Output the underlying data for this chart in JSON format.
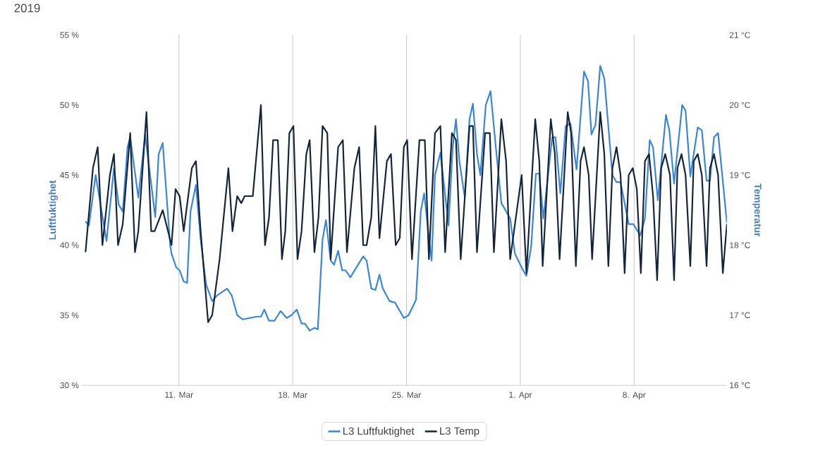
{
  "chart_data": {
    "type": "line",
    "title": "2019",
    "ylabel": "Luftfuktighet",
    "y2label": "Temperatur",
    "xlim": [
      "2019-03-05T00:00",
      "2019-04-13T17:00"
    ],
    "xticks": [
      {
        "value": "2019-03-11",
        "label": "11. Mar"
      },
      {
        "value": "2019-03-18",
        "label": "18. Mar"
      },
      {
        "value": "2019-03-25",
        "label": "25. Mar"
      },
      {
        "value": "2019-04-01",
        "label": "1. Apr"
      },
      {
        "value": "2019-04-08",
        "label": "8. Apr"
      }
    ],
    "ylim": [
      30,
      55
    ],
    "yticks": [
      {
        "value": 30,
        "label": "30 %"
      },
      {
        "value": 35,
        "label": "35 %"
      },
      {
        "value": 40,
        "label": "40 %"
      },
      {
        "value": 45,
        "label": "45 %"
      },
      {
        "value": 50,
        "label": "50 %"
      },
      {
        "value": 55,
        "label": "55 %"
      }
    ],
    "y2lim": [
      16,
      21
    ],
    "y2ticks": [
      {
        "value": 16,
        "label": "16 °C"
      },
      {
        "value": 17,
        "label": "17 °C"
      },
      {
        "value": 18,
        "label": "18 °C"
      },
      {
        "value": 19,
        "label": "19 °C"
      },
      {
        "value": 20,
        "label": "20 °C"
      },
      {
        "value": 21,
        "label": "21 °C"
      }
    ],
    "grid": "x",
    "legend": "bottom",
    "series": [
      {
        "name": "L3 Luftfuktighet",
        "color": "#3a86d6",
        "x": [
          "2019-03-05T06:00",
          "2019-03-05T11:00",
          "2019-03-05T21:00",
          "2019-03-06T13:00",
          "2019-03-07T00:00",
          "2019-03-07T07:00",
          "2019-03-07T13:00",
          "2019-03-07T20:00",
          "2019-03-08T00:00",
          "2019-03-08T12:00",
          "2019-03-08T22:00",
          "2019-03-09T13:00",
          "2019-03-09T18:00",
          "2019-03-10T00:00",
          "2019-03-10T11:00",
          "2019-03-10T13:00",
          "2019-03-10T20:00",
          "2019-03-11T01:00",
          "2019-03-11T07:00",
          "2019-03-11T12:00",
          "2019-03-11T17:00",
          "2019-03-12T01:00",
          "2019-03-12T08:00",
          "2019-03-12T16:00",
          "2019-03-13T01:00",
          "2019-03-13T08:00",
          "2019-03-13T23:00",
          "2019-03-14T06:00",
          "2019-03-14T14:00",
          "2019-03-14T22:00",
          "2019-03-15T08:00",
          "2019-03-15T19:00",
          "2019-03-16T01:00",
          "2019-03-16T06:00",
          "2019-03-16T13:00",
          "2019-03-16T21:00",
          "2019-03-17T06:00",
          "2019-03-17T15:00",
          "2019-03-17T22:00",
          "2019-03-18T06:00",
          "2019-03-18T13:00",
          "2019-03-18T18:00",
          "2019-03-19T01:00",
          "2019-03-19T08:00",
          "2019-03-19T13:00",
          "2019-03-19T20:00",
          "2019-03-20T01:00",
          "2019-03-20T08:00",
          "2019-03-20T13:00",
          "2019-03-20T19:00",
          "2019-03-21T01:00",
          "2019-03-21T06:00",
          "2019-03-21T13:00",
          "2019-03-22T08:00",
          "2019-03-22T13:00",
          "2019-03-22T20:00",
          "2019-03-23T02:00",
          "2019-03-23T08:00",
          "2019-03-23T13:00",
          "2019-03-23T23:00",
          "2019-03-24T07:00",
          "2019-03-24T20:00",
          "2019-03-25T03:00",
          "2019-03-25T14:00",
          "2019-03-25T21:00",
          "2019-03-26T02:00",
          "2019-03-26T08:00",
          "2019-03-26T13:00",
          "2019-03-26T18:00",
          "2019-03-27T02:00",
          "2019-03-27T14:00",
          "2019-03-27T20:00",
          "2019-03-28T01:00",
          "2019-03-28T06:00",
          "2019-03-28T14:00",
          "2019-03-28T21:00",
          "2019-03-29T02:00",
          "2019-03-29T08:00",
          "2019-03-29T13:00",
          "2019-03-29T21:00",
          "2019-03-30T04:00",
          "2019-03-30T12:00",
          "2019-03-30T20:00",
          "2019-03-31T09:00",
          "2019-03-31T16:00",
          "2019-04-01T03:00",
          "2019-04-01T09:00",
          "2019-04-01T16:00",
          "2019-04-01T23:00",
          "2019-04-02T04:00",
          "2019-04-02T10:00",
          "2019-04-02T23:00",
          "2019-04-03T04:00",
          "2019-04-03T11:00",
          "2019-04-03T19:00",
          "2019-04-04T02:00",
          "2019-04-04T11:00",
          "2019-04-04T22:00",
          "2019-04-05T04:00",
          "2019-04-05T09:00",
          "2019-04-05T15:00",
          "2019-04-05T22:00",
          "2019-04-06T04:00",
          "2019-04-06T16:00",
          "2019-04-06T22:00",
          "2019-04-07T04:00",
          "2019-04-07T16:00",
          "2019-04-07T23:00",
          "2019-04-08T09:00",
          "2019-04-08T16:00",
          "2019-04-08T23:00",
          "2019-04-09T04:00",
          "2019-04-09T11:00",
          "2019-04-09T23:00",
          "2019-04-10T04:00",
          "2019-04-10T11:00",
          "2019-04-10T23:00",
          "2019-04-11T04:00",
          "2019-04-11T11:00",
          "2019-04-11T22:00",
          "2019-04-12T04:00",
          "2019-04-12T11:00",
          "2019-04-12T16:00",
          "2019-04-12T22:00",
          "2019-04-13T04:00",
          "2019-04-13T17:00"
        ],
        "values": [
          41.7,
          41.4,
          45.0,
          40.3,
          45.5,
          42.9,
          42.4,
          47.0,
          47.7,
          43.4,
          47.9,
          42.0,
          46.5,
          47.3,
          40.0,
          39.4,
          38.4,
          38.2,
          37.4,
          37.3,
          42.4,
          44.3,
          40.4,
          37.2,
          36.0,
          36.4,
          36.9,
          36.4,
          35.0,
          34.7,
          34.8,
          34.9,
          34.9,
          35.4,
          34.6,
          34.6,
          35.3,
          34.8,
          35.0,
          35.4,
          34.4,
          34.4,
          33.9,
          34.1,
          34.0,
          40.4,
          41.8,
          38.9,
          38.6,
          39.6,
          38.2,
          38.2,
          37.7,
          39.2,
          38.9,
          36.9,
          36.8,
          37.9,
          36.9,
          36.0,
          35.9,
          34.8,
          35.0,
          36.1,
          42.4,
          43.7,
          41.0,
          38.9,
          45.0,
          46.6,
          41.4,
          46.9,
          49.0,
          46.0,
          43.4,
          49.0,
          50.1,
          46.5,
          45.0,
          50.0,
          51.0,
          46.9,
          43.0,
          41.9,
          39.4,
          38.3,
          37.8,
          39.9,
          45.1,
          45.1,
          41.9,
          47.7,
          47.7,
          43.7,
          48.5,
          48.7,
          45.4,
          52.4,
          51.7,
          47.9,
          48.6,
          52.8,
          51.9,
          45.0,
          44.5,
          44.5,
          41.5,
          41.5,
          40.7,
          41.9,
          47.5,
          47.0,
          43.2,
          49.3,
          48.2,
          44.4,
          50.0,
          49.6,
          44.9,
          48.4,
          48.2,
          44.6,
          44.6,
          47.7,
          48.0,
          41.6
        ]
      },
      {
        "name": "L3 Temp",
        "color": "#14243a",
        "axis": "y2",
        "x": [
          "2019-03-05T06:00",
          "2019-03-05T17:00",
          "2019-03-06T00:00",
          "2019-03-06T07:00",
          "2019-03-06T18:00",
          "2019-03-07T00:00",
          "2019-03-07T06:00",
          "2019-03-07T13:00",
          "2019-03-08T00:00",
          "2019-03-08T07:00",
          "2019-03-08T12:00",
          "2019-03-09T00:00",
          "2019-03-09T07:00",
          "2019-03-09T12:00",
          "2019-03-10T00:00",
          "2019-03-10T13:00",
          "2019-03-10T19:00",
          "2019-03-11T01:00",
          "2019-03-11T07:00",
          "2019-03-11T19:00",
          "2019-03-12T01:00",
          "2019-03-12T08:00",
          "2019-03-12T19:00",
          "2019-03-13T01:00",
          "2019-03-13T12:00",
          "2019-03-14T01:00",
          "2019-03-14T07:00",
          "2019-03-14T14:00",
          "2019-03-14T20:00",
          "2019-03-15T01:00",
          "2019-03-15T13:00",
          "2019-03-16T01:00",
          "2019-03-16T07:00",
          "2019-03-16T13:00",
          "2019-03-16T19:00",
          "2019-03-17T02:00",
          "2019-03-17T08:00",
          "2019-03-17T13:00",
          "2019-03-17T19:00",
          "2019-03-18T01:00",
          "2019-03-18T07:00",
          "2019-03-18T13:00",
          "2019-03-18T20:00",
          "2019-03-19T01:00",
          "2019-03-19T08:00",
          "2019-03-19T14:00",
          "2019-03-19T20:00",
          "2019-03-20T03:00",
          "2019-03-20T08:00",
          "2019-03-20T19:00",
          "2019-03-21T02:00",
          "2019-03-21T08:00",
          "2019-03-21T19:00",
          "2019-03-22T02:00",
          "2019-03-22T08:00",
          "2019-03-22T13:00",
          "2019-03-22T20:00",
          "2019-03-23T02:00",
          "2019-03-23T08:00",
          "2019-03-23T19:00",
          "2019-03-24T01:00",
          "2019-03-24T08:00",
          "2019-03-24T14:00",
          "2019-03-24T20:00",
          "2019-03-25T01:00",
          "2019-03-25T08:00",
          "2019-03-25T19:00",
          "2019-03-26T03:00",
          "2019-03-26T09:00",
          "2019-03-26T18:00",
          "2019-03-27T02:00",
          "2019-03-27T09:00",
          "2019-03-27T19:00",
          "2019-03-28T01:00",
          "2019-03-28T08:00",
          "2019-03-28T21:00",
          "2019-03-29T02:00",
          "2019-03-29T08:00",
          "2019-03-29T20:00",
          "2019-03-30T03:00",
          "2019-03-30T09:00",
          "2019-03-30T20:00",
          "2019-03-31T03:00",
          "2019-03-31T09:00",
          "2019-04-01T02:00",
          "2019-04-01T09:00",
          "2019-04-01T22:00",
          "2019-04-02T04:00",
          "2019-04-02T09:00",
          "2019-04-02T21:00",
          "2019-04-03T03:00",
          "2019-04-03T10:00",
          "2019-04-03T22:00",
          "2019-04-04T03:00",
          "2019-04-04T10:00",
          "2019-04-04T17:00",
          "2019-04-04T22:00",
          "2019-04-05T05:00",
          "2019-04-05T10:00",
          "2019-04-05T22:00",
          "2019-04-06T04:00",
          "2019-04-06T10:00",
          "2019-04-06T16:00",
          "2019-04-06T22:00",
          "2019-04-07T04:00",
          "2019-04-07T10:00",
          "2019-04-07T16:00",
          "2019-04-07T22:00",
          "2019-04-08T04:00",
          "2019-04-08T10:00",
          "2019-04-08T16:00",
          "2019-04-08T22:00",
          "2019-04-09T04:00",
          "2019-04-09T10:00",
          "2019-04-09T16:00",
          "2019-04-09T22:00",
          "2019-04-10T05:00",
          "2019-04-10T11:00",
          "2019-04-10T16:00",
          "2019-04-10T22:00",
          "2019-04-11T04:00",
          "2019-04-11T11:00",
          "2019-04-11T16:00",
          "2019-04-11T22:00",
          "2019-04-12T04:00",
          "2019-04-12T11:00",
          "2019-04-12T16:00",
          "2019-04-12T22:00",
          "2019-04-13T04:00",
          "2019-04-13T11:00",
          "2019-04-13T17:00"
        ],
        "values": [
          17.9,
          19.1,
          19.4,
          18.0,
          19.0,
          19.3,
          18.0,
          18.3,
          19.6,
          17.9,
          18.2,
          19.9,
          18.2,
          18.2,
          18.5,
          18.0,
          18.8,
          18.7,
          18.2,
          19.1,
          19.2,
          18.2,
          16.9,
          17.0,
          17.8,
          19.1,
          18.2,
          18.7,
          18.6,
          18.7,
          18.7,
          20.0,
          18.0,
          18.4,
          19.5,
          19.5,
          17.8,
          18.2,
          19.6,
          19.7,
          17.8,
          18.2,
          19.3,
          19.5,
          17.9,
          18.4,
          19.7,
          19.6,
          17.8,
          19.4,
          19.5,
          17.9,
          19.1,
          19.4,
          18.0,
          18.0,
          18.4,
          19.7,
          18.1,
          19.2,
          19.3,
          18.0,
          18.1,
          19.4,
          19.5,
          17.8,
          19.5,
          19.5,
          17.8,
          19.6,
          19.7,
          17.9,
          19.6,
          19.5,
          17.8,
          19.7,
          19.7,
          17.9,
          19.6,
          19.6,
          17.9,
          19.8,
          19.2,
          17.8,
          19.0,
          17.6,
          19.8,
          19.2,
          17.7,
          19.8,
          19.3,
          17.8,
          19.9,
          19.6,
          17.7,
          19.2,
          19.4,
          19.0,
          17.8,
          19.9,
          19.3,
          17.7,
          19.1,
          19.4,
          19.0,
          17.6,
          19.0,
          19.1,
          18.8,
          17.6,
          19.2,
          19.3,
          18.7,
          17.5,
          19.1,
          19.3,
          19.0,
          17.5,
          19.1,
          19.3,
          19.0,
          17.7,
          19.2,
          19.3,
          19.0,
          17.7,
          19.1,
          19.3,
          19.0,
          17.6,
          18.3
        ]
      }
    ]
  }
}
